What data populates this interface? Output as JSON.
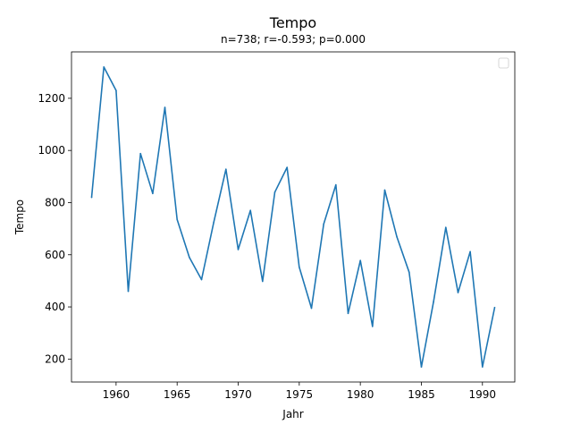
{
  "chart_data": {
    "type": "line",
    "title": "Tempo",
    "subtitle": "n=738; r=-0.593; p=0.000",
    "xlabel": "Jahr",
    "ylabel": "Tempo",
    "xlim": [
      1956.35,
      1992.65
    ],
    "ylim": [
      112,
      1378
    ],
    "xticks": [
      1960,
      1965,
      1970,
      1975,
      1980,
      1985,
      1990
    ],
    "yticks": [
      200,
      400,
      600,
      800,
      1000,
      1200
    ],
    "grid": false,
    "legend": "top-right",
    "series": [
      {
        "color": "#1f77b4",
        "x": [
          1958,
          1959,
          1960,
          1961,
          1962,
          1963,
          1964,
          1965,
          1966,
          1967,
          1968,
          1969,
          1970,
          1971,
          1972,
          1973,
          1974,
          1975,
          1976,
          1977,
          1978,
          1979,
          1980,
          1981,
          1982,
          1983,
          1984,
          1985,
          1986,
          1987,
          1988,
          1989,
          1990,
          1991
        ],
        "y": [
          820,
          1320,
          1230,
          460,
          988,
          835,
          1165,
          735,
          590,
          505,
          725,
          928,
          620,
          770,
          498,
          840,
          935,
          553,
          395,
          718,
          868,
          375,
          578,
          325,
          848,
          668,
          533,
          170,
          420,
          705,
          455,
          612,
          170,
          398
        ]
      }
    ]
  }
}
